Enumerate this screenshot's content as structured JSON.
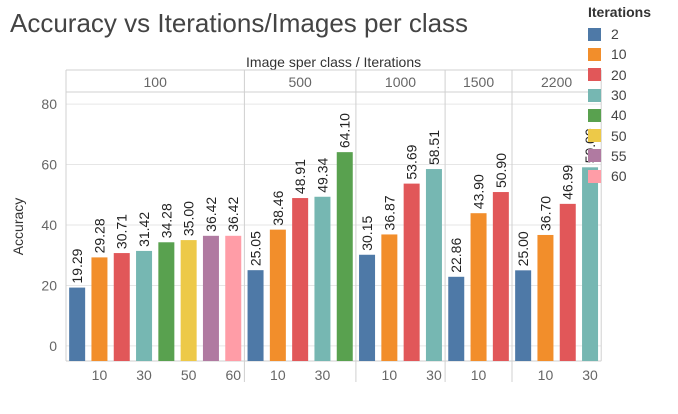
{
  "chart_data": {
    "type": "bar",
    "title": "Accuracy vs Iterations/Images per class",
    "header_label": "Image sper class  /  Iterations",
    "ylabel": "Accuracy",
    "ylim": [
      -5,
      84
    ],
    "yticks": [
      0,
      20,
      40,
      60,
      80
    ],
    "legend_title": "Iterations",
    "legend": [
      {
        "label": "2",
        "color": "#4e79a7"
      },
      {
        "label": "10",
        "color": "#f28e2b"
      },
      {
        "label": "20",
        "color": "#e15759"
      },
      {
        "label": "30",
        "color": "#76b7b2"
      },
      {
        "label": "40",
        "color": "#59a14f"
      },
      {
        "label": "50",
        "color": "#edc948"
      },
      {
        "label": "55",
        "color": "#b07aa1"
      },
      {
        "label": "60",
        "color": "#ff9da7"
      }
    ],
    "groups": [
      {
        "name": "100",
        "iterations": [
          "2",
          "10",
          "20",
          "30",
          "40",
          "50",
          "55",
          "60"
        ],
        "values": [
          19.29,
          29.28,
          30.71,
          31.42,
          34.28,
          35.0,
          36.42,
          36.42
        ],
        "labels": [
          "19.29",
          "29.28",
          "30.71",
          "31.42",
          "34.28",
          "35.00",
          "36.42",
          "36.42"
        ],
        "ticks": [
          "",
          "10",
          "",
          "30",
          "",
          "50",
          "",
          "60"
        ]
      },
      {
        "name": "500",
        "iterations": [
          "2",
          "10",
          "20",
          "30",
          "40"
        ],
        "values": [
          25.05,
          38.46,
          48.91,
          49.34,
          64.1
        ],
        "labels": [
          "25.05",
          "38.46",
          "48.91",
          "49.34",
          "64.10"
        ],
        "ticks": [
          "",
          "10",
          "",
          "30",
          ""
        ]
      },
      {
        "name": "1000",
        "iterations": [
          "2",
          "10",
          "20",
          "30"
        ],
        "values": [
          30.15,
          36.87,
          53.69,
          58.51
        ],
        "labels": [
          "30.15",
          "36.87",
          "53.69",
          "58.51"
        ],
        "ticks": [
          "",
          "10",
          "",
          "30"
        ]
      },
      {
        "name": "1500",
        "iterations": [
          "2",
          "10",
          "20"
        ],
        "values": [
          22.86,
          43.9,
          50.9
        ],
        "labels": [
          "22.86",
          "43.90",
          "50.90"
        ],
        "ticks": [
          "",
          "10",
          ""
        ]
      },
      {
        "name": "2200",
        "iterations": [
          "2",
          "10",
          "20",
          "30"
        ],
        "values": [
          25.0,
          36.7,
          46.99,
          59.09
        ],
        "labels": [
          "25.00",
          "36.70",
          "46.99",
          "59.09"
        ],
        "ticks": [
          "",
          "10",
          "",
          "30"
        ]
      }
    ]
  }
}
